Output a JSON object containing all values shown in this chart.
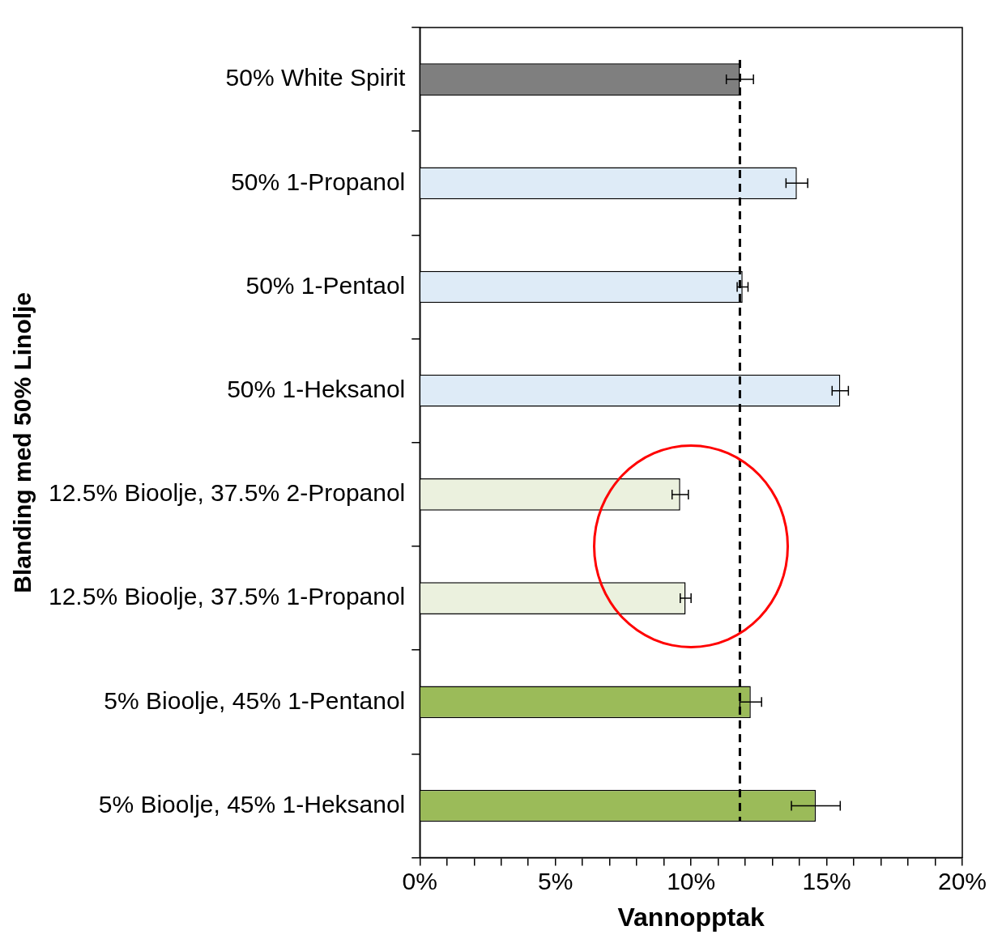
{
  "chart_data": {
    "type": "bar",
    "orientation": "horizontal",
    "xlabel": "Vannopptak",
    "ylabel": "Blanding med 50% Linolje",
    "categories": [
      "50% White Spirit",
      "50% 1-Propanol",
      "50% 1-Pentaol",
      "50% 1-Heksanol",
      "12.5% Bioolje, 37.5% 2-Propanol",
      "12.5% Bioolje, 37.5% 1-Propanol",
      "5% Bioolje, 45% 1-Pentanol",
      "5% Bioolje, 45% 1-Heksanol"
    ],
    "values": [
      11.8,
      13.9,
      11.9,
      15.5,
      9.6,
      9.8,
      12.2,
      14.6
    ],
    "errors": [
      0.5,
      0.4,
      0.2,
      0.3,
      0.3,
      0.2,
      0.4,
      0.9
    ],
    "colors": [
      "#7f7f7f",
      "#deebf7",
      "#deebf7",
      "#deebf7",
      "#ebf1de",
      "#ebf1de",
      "#9bbb59",
      "#9bbb59"
    ],
    "xlim": [
      0,
      20
    ],
    "xticks": [
      {
        "value": 0,
        "label": "0%"
      },
      {
        "value": 1,
        "label": null
      },
      {
        "value": 2,
        "label": null
      },
      {
        "value": 3,
        "label": null
      },
      {
        "value": 4,
        "label": null
      },
      {
        "value": 5,
        "label": "5%"
      },
      {
        "value": 6,
        "label": null
      },
      {
        "value": 7,
        "label": null
      },
      {
        "value": 8,
        "label": null
      },
      {
        "value": 9,
        "label": null
      },
      {
        "value": 10,
        "label": "10%"
      },
      {
        "value": 11,
        "label": null
      },
      {
        "value": 12,
        "label": null
      },
      {
        "value": 13,
        "label": null
      },
      {
        "value": 14,
        "label": null
      },
      {
        "value": 15,
        "label": "15%"
      },
      {
        "value": 16,
        "label": null
      },
      {
        "value": 17,
        "label": null
      },
      {
        "value": 18,
        "label": null
      },
      {
        "value": 19,
        "label": null
      },
      {
        "value": 20,
        "label": "20%"
      }
    ],
    "ref_lines": [
      {
        "axis": "x",
        "value": 11.8,
        "color": "#000000",
        "line_style": "dashed"
      }
    ],
    "grid": false,
    "legend": false
  }
}
